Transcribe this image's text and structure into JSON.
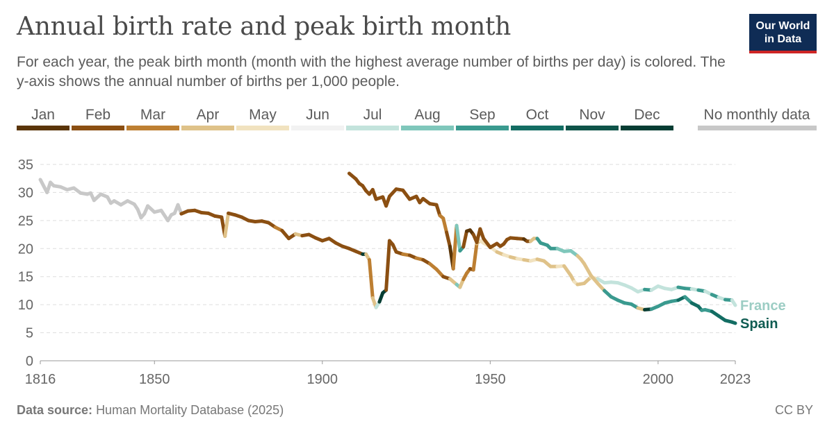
{
  "header": {
    "title": "Annual birth rate and peak birth month",
    "subtitle": "For each year, the peak birth month (month with the highest average number of births per day) is colored. The y-axis shows the annual number of births per 1,000 people.",
    "logo_line1": "Our World",
    "logo_line2": "in Data"
  },
  "footer": {
    "source_label": "Data source:",
    "source_text": "Human Mortality Database (2025)",
    "license": "CC BY"
  },
  "colors": {
    "Jan": "#5a3509",
    "Feb": "#8b4f12",
    "Mar": "#bd7f32",
    "Apr": "#dfc289",
    "May": "#f1e2bf",
    "Jun": "#f2f2f2",
    "Jul": "#c3e3dc",
    "Aug": "#7fc7bb",
    "Sep": "#3a9a8f",
    "Oct": "#136d63",
    "Nov": "#0f5449",
    "Dec": "#063d33",
    "None": "#c8c8c8"
  },
  "chart_data": {
    "type": "line",
    "title": "Annual birth rate and peak birth month",
    "xlabel": "",
    "ylabel": "",
    "xlim": [
      1816,
      2023
    ],
    "ylim": [
      0,
      35
    ],
    "x_ticks": [
      1816,
      1850,
      1900,
      1950,
      2000,
      2023
    ],
    "y_ticks": [
      0,
      5,
      10,
      15,
      20,
      25,
      30,
      35
    ],
    "grid": true,
    "legend_position": "top",
    "legend": [
      "Jan",
      "Feb",
      "Mar",
      "Apr",
      "May",
      "Jun",
      "Jul",
      "Aug",
      "Sep",
      "Oct",
      "Nov",
      "Dec"
    ],
    "legend_extra": "No monthly data",
    "series": [
      {
        "name": "France",
        "label_color": "#9ccdc4",
        "points": [
          [
            1816,
            32.3,
            "None"
          ],
          [
            1818,
            30.0,
            "None"
          ],
          [
            1819,
            31.8,
            "None"
          ],
          [
            1820,
            31.2,
            "None"
          ],
          [
            1822,
            31.0,
            "None"
          ],
          [
            1824,
            30.5,
            "None"
          ],
          [
            1826,
            30.8,
            "None"
          ],
          [
            1828,
            29.9,
            "None"
          ],
          [
            1830,
            29.7,
            "None"
          ],
          [
            1831,
            29.9,
            "None"
          ],
          [
            1832,
            28.6,
            "None"
          ],
          [
            1834,
            29.7,
            "None"
          ],
          [
            1836,
            29.2,
            "None"
          ],
          [
            1837,
            28.1,
            "None"
          ],
          [
            1838,
            28.5,
            "None"
          ],
          [
            1840,
            27.8,
            "None"
          ],
          [
            1842,
            28.5,
            "None"
          ],
          [
            1844,
            27.9,
            "None"
          ],
          [
            1845,
            27.0,
            "None"
          ],
          [
            1846,
            25.5,
            "None"
          ],
          [
            1847,
            26.2,
            "None"
          ],
          [
            1848,
            27.6,
            "None"
          ],
          [
            1850,
            26.5,
            "None"
          ],
          [
            1852,
            26.8,
            "None"
          ],
          [
            1854,
            25.0,
            "None"
          ],
          [
            1855,
            26.0,
            "None"
          ],
          [
            1856,
            26.3,
            "None"
          ],
          [
            1857,
            27.8,
            "None"
          ],
          [
            1858,
            26.2,
            "None"
          ],
          [
            1860,
            26.7,
            "Feb"
          ],
          [
            1862,
            26.8,
            "Feb"
          ],
          [
            1864,
            26.4,
            "Feb"
          ],
          [
            1866,
            26.3,
            "Feb"
          ],
          [
            1868,
            25.8,
            "Feb"
          ],
          [
            1870,
            25.6,
            "Feb"
          ],
          [
            1871,
            22.2,
            "Feb"
          ],
          [
            1872,
            26.3,
            "Apr"
          ],
          [
            1874,
            26.0,
            "Feb"
          ],
          [
            1876,
            25.6,
            "Feb"
          ],
          [
            1878,
            25.0,
            "Feb"
          ],
          [
            1880,
            24.8,
            "Feb"
          ],
          [
            1882,
            24.9,
            "Feb"
          ],
          [
            1884,
            24.6,
            "Feb"
          ],
          [
            1886,
            23.8,
            "Feb"
          ],
          [
            1888,
            23.2,
            "Mar"
          ],
          [
            1890,
            21.8,
            "Feb"
          ],
          [
            1892,
            22.6,
            "Feb"
          ],
          [
            1894,
            22.3,
            "Apr"
          ],
          [
            1896,
            22.5,
            "Feb"
          ],
          [
            1898,
            21.9,
            "Feb"
          ],
          [
            1900,
            21.4,
            "Feb"
          ],
          [
            1902,
            21.8,
            "Feb"
          ],
          [
            1904,
            21.0,
            "Feb"
          ],
          [
            1906,
            20.4,
            "Feb"
          ],
          [
            1908,
            20.0,
            "Feb"
          ],
          [
            1910,
            19.5,
            "Feb"
          ],
          [
            1912,
            19.0,
            "Feb"
          ],
          [
            1913,
            19.0,
            "Dec"
          ],
          [
            1914,
            18.0,
            "Apr"
          ],
          [
            1915,
            11.2,
            "Mar"
          ],
          [
            1916,
            9.5,
            "Apr"
          ],
          [
            1917,
            10.5,
            "Jul"
          ],
          [
            1918,
            12.1,
            "Dec"
          ],
          [
            1919,
            12.6,
            "Dec"
          ],
          [
            1920,
            21.4,
            "Feb"
          ],
          [
            1921,
            20.7,
            "Feb"
          ],
          [
            1922,
            19.4,
            "Feb"
          ],
          [
            1924,
            19.0,
            "Feb"
          ],
          [
            1926,
            18.8,
            "Mar"
          ],
          [
            1928,
            18.3,
            "Feb"
          ],
          [
            1930,
            18.0,
            "Mar"
          ],
          [
            1932,
            17.3,
            "Feb"
          ],
          [
            1934,
            16.3,
            "Mar"
          ],
          [
            1936,
            15.0,
            "Mar"
          ],
          [
            1938,
            14.6,
            "Feb"
          ],
          [
            1940,
            13.6,
            "Apr"
          ],
          [
            1941,
            13.1,
            "Aug"
          ],
          [
            1942,
            14.5,
            "Apr"
          ],
          [
            1943,
            15.6,
            "Mar"
          ],
          [
            1944,
            16.4,
            "Mar"
          ],
          [
            1945,
            16.2,
            "Feb"
          ],
          [
            1946,
            20.9,
            "Mar"
          ],
          [
            1947,
            21.4,
            "Apr"
          ],
          [
            1948,
            21.0,
            "May"
          ],
          [
            1950,
            20.3,
            "May"
          ],
          [
            1952,
            19.4,
            "May"
          ],
          [
            1954,
            18.9,
            "Apr"
          ],
          [
            1956,
            18.5,
            "May"
          ],
          [
            1958,
            18.2,
            "Apr"
          ],
          [
            1960,
            18.0,
            "May"
          ],
          [
            1962,
            17.8,
            "Apr"
          ],
          [
            1964,
            18.1,
            "May"
          ],
          [
            1966,
            17.8,
            "Apr"
          ],
          [
            1968,
            16.8,
            "Apr"
          ],
          [
            1970,
            16.8,
            "Apr"
          ],
          [
            1972,
            16.9,
            "May"
          ],
          [
            1974,
            15.2,
            "Apr"
          ],
          [
            1975,
            14.1,
            "Apr"
          ],
          [
            1976,
            13.6,
            "May"
          ],
          [
            1978,
            13.8,
            "Apr"
          ],
          [
            1980,
            14.9,
            "Apr"
          ],
          [
            1982,
            14.6,
            "May"
          ],
          [
            1984,
            13.9,
            "Jul"
          ],
          [
            1986,
            14.0,
            "Jul"
          ],
          [
            1988,
            13.9,
            "Jul"
          ],
          [
            1990,
            13.5,
            "Jul"
          ],
          [
            1992,
            13.0,
            "Jul"
          ],
          [
            1994,
            12.3,
            "Jul"
          ],
          [
            1996,
            12.7,
            "Jul"
          ],
          [
            1998,
            12.6,
            "Sep"
          ],
          [
            2000,
            13.3,
            "Jul"
          ],
          [
            2002,
            12.9,
            "Jul"
          ],
          [
            2004,
            12.7,
            "Jul"
          ],
          [
            2006,
            13.1,
            "Jul"
          ],
          [
            2008,
            12.9,
            "Sep"
          ],
          [
            2010,
            12.8,
            "Sep"
          ],
          [
            2012,
            12.6,
            "Jul"
          ],
          [
            2014,
            12.4,
            "Sep"
          ],
          [
            2016,
            11.8,
            "Jul"
          ],
          [
            2018,
            11.3,
            "Sep"
          ],
          [
            2020,
            10.9,
            "Jul"
          ],
          [
            2022,
            10.8,
            "Sep"
          ],
          [
            2023,
            9.9,
            "Jul"
          ]
        ]
      },
      {
        "name": "Spain",
        "label_color": "#0f5c52",
        "points": [
          [
            1908,
            33.4,
            "Feb"
          ],
          [
            1910,
            32.4,
            "Feb"
          ],
          [
            1911,
            31.6,
            "Feb"
          ],
          [
            1912,
            31.2,
            "Feb"
          ],
          [
            1913,
            30.3,
            "Feb"
          ],
          [
            1914,
            29.7,
            "Feb"
          ],
          [
            1915,
            30.5,
            "Feb"
          ],
          [
            1916,
            28.8,
            "Feb"
          ],
          [
            1918,
            29.2,
            "Feb"
          ],
          [
            1919,
            27.6,
            "Feb"
          ],
          [
            1920,
            29.3,
            "Feb"
          ],
          [
            1922,
            30.6,
            "Feb"
          ],
          [
            1924,
            30.4,
            "Feb"
          ],
          [
            1926,
            28.8,
            "Feb"
          ],
          [
            1928,
            29.3,
            "Feb"
          ],
          [
            1929,
            28.2,
            "Feb"
          ],
          [
            1930,
            28.9,
            "Feb"
          ],
          [
            1932,
            28.0,
            "Feb"
          ],
          [
            1934,
            27.8,
            "Feb"
          ],
          [
            1935,
            25.9,
            "Feb"
          ],
          [
            1936,
            25.4,
            "Mar"
          ],
          [
            1937,
            22.9,
            "Mar"
          ],
          [
            1938,
            20.4,
            "Feb"
          ],
          [
            1939,
            16.4,
            "Jan"
          ],
          [
            1940,
            24.1,
            "Mar"
          ],
          [
            1941,
            19.6,
            "Aug"
          ],
          [
            1942,
            20.3,
            "Sep"
          ],
          [
            1943,
            23.1,
            "Feb"
          ],
          [
            1944,
            23.3,
            "Jan"
          ],
          [
            1945,
            22.5,
            "Jan"
          ],
          [
            1946,
            21.1,
            "Feb"
          ],
          [
            1947,
            23.5,
            "Feb"
          ],
          [
            1948,
            21.8,
            "Feb"
          ],
          [
            1950,
            20.2,
            "Feb"
          ],
          [
            1952,
            20.9,
            "Feb"
          ],
          [
            1953,
            20.4,
            "Feb"
          ],
          [
            1954,
            20.8,
            "Feb"
          ],
          [
            1955,
            21.6,
            "Feb"
          ],
          [
            1956,
            21.9,
            "Feb"
          ],
          [
            1958,
            21.8,
            "Feb"
          ],
          [
            1960,
            21.7,
            "Feb"
          ],
          [
            1961,
            21.3,
            "Jan"
          ],
          [
            1962,
            21.3,
            "Feb"
          ],
          [
            1963,
            21.8,
            "Apr"
          ],
          [
            1964,
            21.8,
            "Apr"
          ],
          [
            1965,
            21.0,
            "Sep"
          ],
          [
            1967,
            20.6,
            "Sep"
          ],
          [
            1968,
            20.0,
            "Sep"
          ],
          [
            1970,
            20.0,
            "Sep"
          ],
          [
            1972,
            19.5,
            "Aug"
          ],
          [
            1974,
            19.6,
            "Aug"
          ],
          [
            1976,
            18.7,
            "Aug"
          ],
          [
            1977,
            18.1,
            "Apr"
          ],
          [
            1978,
            17.3,
            "Apr"
          ],
          [
            1980,
            15.2,
            "Apr"
          ],
          [
            1982,
            13.8,
            "Apr"
          ],
          [
            1984,
            12.5,
            "Apr"
          ],
          [
            1986,
            11.4,
            "Sep"
          ],
          [
            1988,
            10.8,
            "Sep"
          ],
          [
            1990,
            10.3,
            "Sep"
          ],
          [
            1992,
            10.1,
            "Sep"
          ],
          [
            1994,
            9.4,
            "Sep"
          ],
          [
            1996,
            9.1,
            "Apr"
          ],
          [
            1998,
            9.2,
            "Dec"
          ],
          [
            2000,
            9.7,
            "Sep"
          ],
          [
            2002,
            10.3,
            "Sep"
          ],
          [
            2004,
            10.6,
            "Sep"
          ],
          [
            2006,
            10.8,
            "Sep"
          ],
          [
            2008,
            11.4,
            "Oct"
          ],
          [
            2010,
            10.3,
            "Sep"
          ],
          [
            2012,
            9.7,
            "Oct"
          ],
          [
            2013,
            9.0,
            "Oct"
          ],
          [
            2014,
            9.1,
            "Sep"
          ],
          [
            2016,
            8.8,
            "Sep"
          ],
          [
            2018,
            8.0,
            "Oct"
          ],
          [
            2020,
            7.2,
            "Oct"
          ],
          [
            2022,
            6.9,
            "Oct"
          ],
          [
            2023,
            6.7,
            "Oct"
          ]
        ]
      }
    ]
  }
}
